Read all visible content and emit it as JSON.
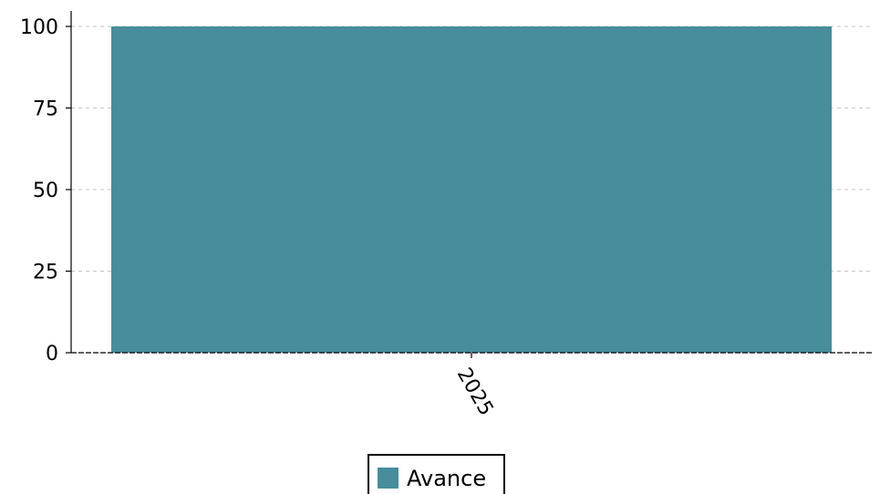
{
  "chart_data": {
    "type": "bar",
    "categories": [
      "2025"
    ],
    "series": [
      {
        "name": "Avance",
        "values": [
          100
        ],
        "color": "#478d9b"
      }
    ],
    "xlabel": "",
    "ylabel": "",
    "ylim": [
      0,
      100
    ],
    "yticks": [
      0,
      25,
      50,
      75,
      100
    ],
    "grid": "y-dashed",
    "legend": "bottom-center"
  }
}
